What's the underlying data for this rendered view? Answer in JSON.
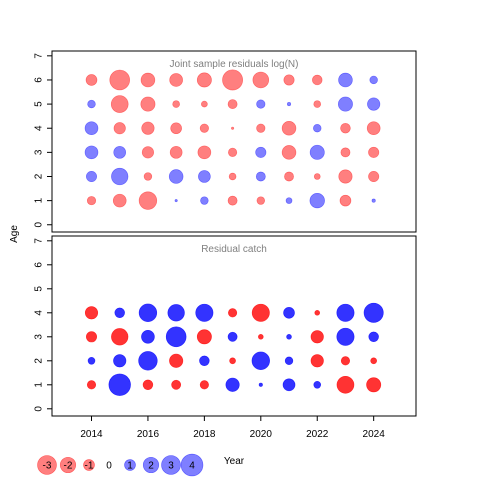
{
  "chart_data": {
    "type": "bubble",
    "xlabel": "Year",
    "ylabel": "Age",
    "x_ticks": [
      2014,
      2016,
      2018,
      2020,
      2022,
      2024
    ],
    "years": [
      2014,
      2015,
      2016,
      2017,
      2018,
      2019,
      2020,
      2021,
      2022,
      2023,
      2024
    ],
    "xlim": [
      2012.6,
      2025.5
    ],
    "ylim": [
      -0.3,
      7.2
    ],
    "y_ticks": [
      0,
      1,
      2,
      3,
      4,
      5,
      6,
      7
    ],
    "colors": {
      "negative": "#FF0000",
      "positive": "#0000FF",
      "panel1_alpha": 0.5,
      "panel2_alpha": 0.8
    },
    "panels": [
      {
        "title": "Joint sample residuals log(N)",
        "alpha": 0.5,
        "ages": [
          1,
          2,
          3,
          4,
          5,
          6
        ],
        "residuals": [
          [
            -0.6,
            -1.4,
            -2.6,
            0.05,
            0.5,
            -0.7,
            -0.5,
            0.3,
            1.8,
            -1.0,
            0.1
          ],
          [
            0.9,
            2.3,
            -0.5,
            1.6,
            1.2,
            -0.4,
            0.7,
            -0.7,
            -0.3,
            -1.5,
            -0.9
          ],
          [
            1.4,
            1.2,
            -1.1,
            -1.2,
            -1.4,
            -0.6,
            0.9,
            -1.6,
            1.7,
            -0.7,
            -0.9
          ],
          [
            1.4,
            -1.1,
            -1.3,
            -1.0,
            -0.6,
            -0.05,
            -0.6,
            -1.6,
            0.5,
            -0.8,
            -1.4
          ],
          [
            0.5,
            -2.4,
            -1.7,
            -0.4,
            -0.3,
            -0.7,
            0.6,
            0.1,
            -0.4,
            1.7,
            1.3
          ],
          [
            -1.0,
            -3.3,
            -1.6,
            -1.4,
            -1.7,
            -3.4,
            -2.1,
            -0.9,
            -0.8,
            1.6,
            0.5
          ]
        ]
      },
      {
        "title": "Residual catch",
        "alpha": 0.8,
        "ages": [
          1,
          2,
          3,
          4
        ],
        "residuals": [
          [
            -0.6,
            3.9,
            -0.8,
            -0.7,
            -0.6,
            1.5,
            0.1,
            1.2,
            0.4,
            -2.4,
            -1.7
          ],
          [
            0.4,
            1.3,
            2.9,
            -1.5,
            0.8,
            -0.3,
            2.6,
            0.5,
            -1.3,
            -0.6,
            -0.3
          ],
          [
            -0.9,
            -2.3,
            1.4,
            3.3,
            -1.7,
            0.7,
            -0.2,
            0.2,
            -1.3,
            2.5,
            0.8
          ],
          [
            -1.3,
            0.8,
            2.6,
            2.3,
            2.5,
            -0.6,
            -2.5,
            1.0,
            -0.2,
            2.5,
            3.1
          ]
        ]
      }
    ],
    "legend": {
      "values": [
        -3,
        -2,
        -1,
        0,
        1,
        2,
        3,
        4
      ],
      "labels": [
        "-3",
        "-2",
        "-1",
        "0",
        "1",
        "2",
        "3",
        "4"
      ]
    }
  }
}
